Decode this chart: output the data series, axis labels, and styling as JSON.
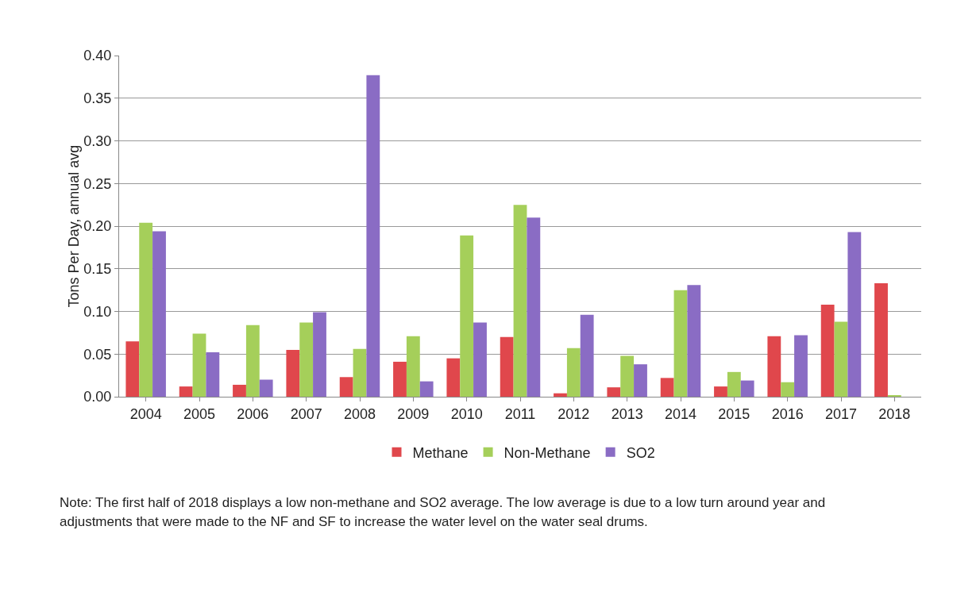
{
  "chart_data": {
    "type": "bar",
    "ylabel": "Tons Per Day, annual avg",
    "categories": [
      "2004",
      "2005",
      "2006",
      "2007",
      "2008",
      "2009",
      "2010",
      "2011",
      "2012",
      "2013",
      "2014",
      "2015",
      "2016",
      "2017",
      "2018"
    ],
    "series": [
      {
        "name": "Methane",
        "color": "#e0474c",
        "values": [
          0.065,
          0.012,
          0.014,
          0.055,
          0.023,
          0.041,
          0.045,
          0.07,
          0.004,
          0.011,
          0.022,
          0.012,
          0.071,
          0.108,
          0.133
        ]
      },
      {
        "name": "Non-Methane",
        "color": "#a5cf5a",
        "values": [
          0.204,
          0.074,
          0.084,
          0.087,
          0.056,
          0.071,
          0.189,
          0.225,
          0.057,
          0.048,
          0.125,
          0.029,
          0.017,
          0.088,
          0.001
        ]
      },
      {
        "name": "SO2",
        "color": "#8a6cc4",
        "values": [
          0.194,
          0.052,
          0.02,
          0.099,
          0.377,
          0.018,
          0.087,
          0.21,
          0.096,
          0.038,
          0.131,
          0.019,
          0.072,
          0.193,
          0
        ]
      }
    ],
    "ylim": [
      0,
      0.4
    ],
    "yticks": [
      {
        "value": 0,
        "label": "0.00"
      },
      {
        "value": 0.05,
        "label": "0.05"
      },
      {
        "value": 0.1,
        "label": "0.10"
      },
      {
        "value": 0.15,
        "label": "0.15"
      },
      {
        "value": 0.2,
        "label": "0.20"
      },
      {
        "value": 0.25,
        "label": "0.25"
      },
      {
        "value": 0.3,
        "label": "0.30"
      },
      {
        "value": 0.35,
        "label": "0.35"
      },
      {
        "value": 0.4,
        "label": "0.40"
      }
    ],
    "grid": "y",
    "legend": "bottom",
    "annotations": [
      "Note: The first half of 2018 displays a low non-methane and SO2 average. The low average is due to a low turn around year and adjustments that were made to the NF and SF to increase the water level on the water seal drums."
    ]
  }
}
